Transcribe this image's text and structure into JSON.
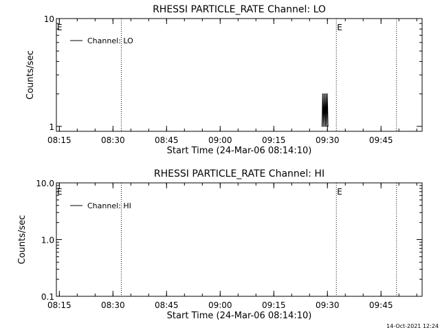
{
  "footer": {
    "timestamp": "14-Oct-2021 12:24"
  },
  "chart_data": [
    {
      "type": "line",
      "title": "RHESSI PARTICLE_RATE Channel: LO",
      "xlabel": "Start Time (24-Mar-06 08:14:10)",
      "ylabel": "Counts/sec",
      "y_scale": "log",
      "ylim": [
        0.9,
        10
      ],
      "y_ticks": [
        {
          "value": 1,
          "label": "1"
        },
        {
          "value": 10,
          "label": "10"
        }
      ],
      "x_ticks": [
        "08:15",
        "08:30",
        "08:45",
        "09:00",
        "09:15",
        "09:30",
        "09:45"
      ],
      "xlim": [
        "08:14:10",
        "09:56:30"
      ],
      "legend": {
        "position": "top-left",
        "entries": [
          "Channel: LO"
        ]
      },
      "event_lines": [
        "08:32:20",
        "09:32:30",
        "09:49:20"
      ],
      "event_marks": [
        "E",
        "E"
      ],
      "series": [
        {
          "name": "Channel: LO",
          "x": [
            "09:28:30",
            "09:28:40",
            "09:28:50",
            "09:29:00",
            "09:29:10",
            "09:29:20",
            "09:29:30",
            "09:29:40",
            "09:29:50",
            "09:30:00",
            "09:30:10"
          ],
          "values": [
            1,
            2,
            1,
            2,
            1,
            2,
            1,
            2,
            1,
            2,
            1
          ]
        }
      ]
    },
    {
      "type": "line",
      "title": "RHESSI PARTICLE_RATE Channel: HI",
      "xlabel": "Start Time (24-Mar-06 08:14:10)",
      "ylabel": "Counts/sec",
      "y_scale": "log",
      "ylim": [
        0.1,
        10
      ],
      "y_ticks": [
        {
          "value": 0.1,
          "label": "0.1"
        },
        {
          "value": 1,
          "label": "1.0"
        },
        {
          "value": 10,
          "label": "10.0"
        }
      ],
      "x_ticks": [
        "08:15",
        "08:30",
        "08:45",
        "09:00",
        "09:15",
        "09:30",
        "09:45"
      ],
      "xlim": [
        "08:14:10",
        "09:56:30"
      ],
      "legend": {
        "position": "top-left",
        "entries": [
          "Channel: HI"
        ]
      },
      "event_lines": [
        "08:32:20",
        "09:32:30",
        "09:49:20"
      ],
      "event_marks": [
        "E",
        "E"
      ],
      "series": [
        {
          "name": "Channel: HI",
          "x": [],
          "values": []
        }
      ]
    }
  ]
}
